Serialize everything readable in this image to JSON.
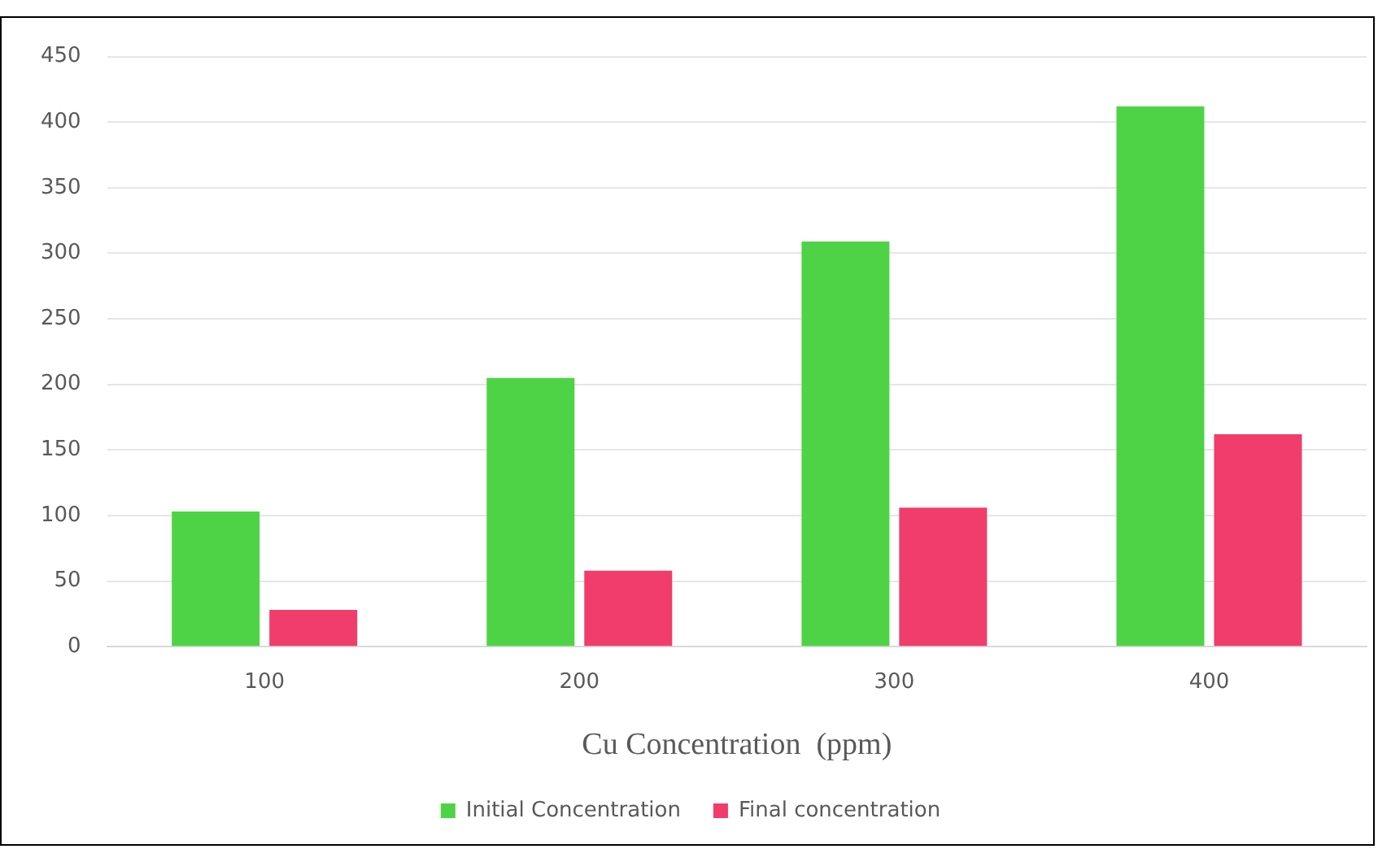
{
  "chart_data": {
    "type": "bar",
    "xlabel": "Cu Concentration  (ppm)",
    "categories": [
      "100",
      "200",
      "300",
      "400"
    ],
    "series": [
      {
        "name": "Initial Concentration",
        "color": "#4fd346",
        "values": [
          103,
          205,
          309,
          412
        ]
      },
      {
        "name": "Final concentration",
        "color": "#f03d6b",
        "values": [
          28,
          58,
          106,
          162
        ]
      }
    ],
    "ylim": [
      0,
      450
    ],
    "yticks": [
      0,
      50,
      100,
      150,
      200,
      250,
      300,
      350,
      400,
      450
    ],
    "grid": "y",
    "legend": "bottom"
  }
}
